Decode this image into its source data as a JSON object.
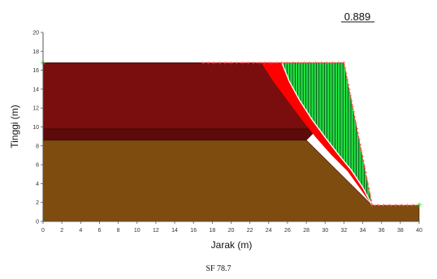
{
  "caption": "SF 78.7",
  "chart_data": {
    "type": "line",
    "title": "",
    "factor_of_safety_label": "0.889",
    "xlabel": "Jarak (m)",
    "ylabel": "Tinggi (m)",
    "xlim": [
      0,
      40
    ],
    "ylim": [
      0,
      20
    ],
    "xticks": [
      0,
      2,
      4,
      6,
      8,
      10,
      12,
      14,
      16,
      18,
      20,
      22,
      24,
      26,
      28,
      30,
      32,
      34,
      36,
      38,
      40
    ],
    "yticks": [
      0,
      2,
      4,
      6,
      8,
      10,
      12,
      14,
      16,
      18,
      20
    ],
    "grid": false,
    "soil_layers": [
      {
        "name": "lower",
        "color": "#7f4c0f",
        "polygon": [
          [
            0,
            0
          ],
          [
            40,
            0
          ],
          [
            40,
            1.7
          ],
          [
            35,
            1.7
          ],
          [
            28,
            8.6
          ],
          [
            0,
            8.6
          ]
        ]
      },
      {
        "name": "middle",
        "color": "#5c0a0a",
        "polygon": [
          [
            0,
            8.6
          ],
          [
            28,
            8.6
          ],
          [
            29.2,
            9.8
          ],
          [
            0,
            9.8
          ]
        ]
      },
      {
        "name": "upper",
        "color": "#7a0d0d",
        "polygon": [
          [
            0,
            9.8
          ],
          [
            29.2,
            9.8
          ],
          [
            32,
            16.8
          ],
          [
            0,
            16.8
          ]
        ]
      }
    ],
    "failure_wedge": {
      "fill": "#ff0000",
      "outer": [
        [
          23.2,
          16.8
        ],
        [
          24.5,
          14.8
        ],
        [
          26,
          12.8
        ],
        [
          27.5,
          10.8
        ],
        [
          29,
          8.9
        ],
        [
          30.6,
          7.1
        ],
        [
          32.4,
          5.3
        ],
        [
          33.7,
          3.5
        ],
        [
          35,
          1.7
        ]
      ],
      "inner": [
        [
          25.4,
          16.8
        ],
        [
          26.2,
          14.8
        ],
        [
          27.3,
          12.8
        ],
        [
          28.6,
          10.8
        ],
        [
          30,
          8.9
        ],
        [
          31.4,
          7.1
        ],
        [
          32.8,
          5.4
        ],
        [
          34,
          3.6
        ],
        [
          35,
          1.7
        ]
      ]
    },
    "slip_surface": {
      "color": "#ffffff",
      "points": [
        [
          25.4,
          16.8
        ],
        [
          26.2,
          14.8
        ],
        [
          27.3,
          12.8
        ],
        [
          28.6,
          10.8
        ],
        [
          30,
          8.9
        ],
        [
          31.4,
          7.1
        ],
        [
          32.8,
          5.4
        ],
        [
          34,
          3.6
        ],
        [
          35,
          1.7
        ]
      ]
    },
    "slice_region": {
      "fill": "#22dd44",
      "slice_color": "#0a3a10",
      "slice_count": 34
    },
    "ground_profile": {
      "color": "#ff4444",
      "points": [
        [
          17,
          16.8
        ],
        [
          32,
          16.8
        ],
        [
          35,
          1.7
        ],
        [
          40,
          1.7
        ]
      ]
    },
    "markers": [
      {
        "x": 0,
        "y": 16.8,
        "color": "#22cc22"
      },
      {
        "x": 40,
        "y": 1.7,
        "color": "#22cc22"
      }
    ]
  }
}
